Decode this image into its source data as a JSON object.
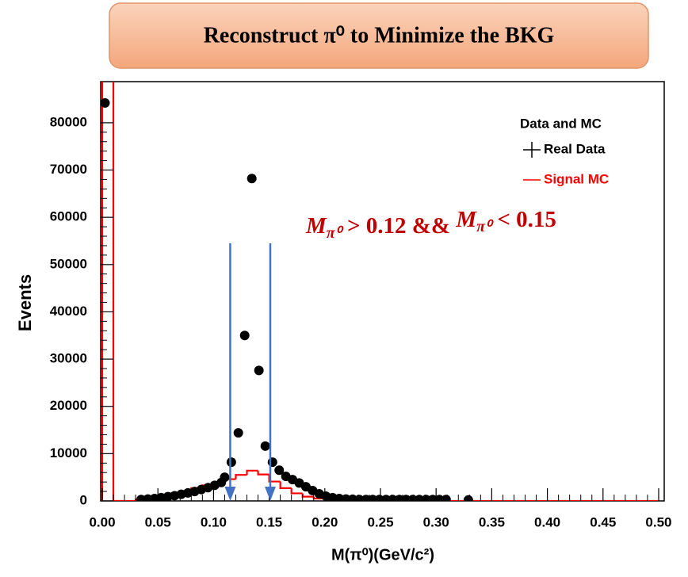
{
  "chart_data": {
    "type": "physics-hist",
    "title": "Reconstruct π⁰ to Minimize the BKG",
    "x_label": "M(π⁰)(GeV/c²)",
    "y_label": "Events",
    "xlim": [
      0,
      0.505
    ],
    "ylim": [
      0,
      88700
    ],
    "xticks": [
      {
        "value": 0,
        "label": "0.00"
      },
      0.05,
      {
        "value": 0.1,
        "label": "0.10"
      },
      0.15,
      {
        "value": 0.2,
        "label": "0.20"
      },
      0.25,
      {
        "value": 0.3,
        "label": "0.30"
      },
      0.35,
      {
        "value": 0.4,
        "label": "0.40"
      },
      0.45,
      {
        "value": 0.5,
        "label": "0.50"
      }
    ],
    "yticks": [
      0,
      10000,
      20000,
      30000,
      40000,
      50000,
      60000,
      70000,
      80000
    ],
    "legend_title": "Data and MC",
    "data": {
      "name": "Real Data",
      "color": "#000000",
      "x": [
        0.0025,
        0.035,
        0.041,
        0.047,
        0.053,
        0.059,
        0.065,
        0.071,
        0.077,
        0.083,
        0.089,
        0.095,
        0.101,
        0.107,
        0.11,
        0.116,
        0.1223,
        0.128,
        0.1344,
        0.1408,
        0.1465,
        0.153,
        0.159,
        0.165,
        0.171,
        0.177,
        0.183,
        0.189,
        0.195,
        0.201,
        0.207,
        0.213,
        0.219,
        0.225,
        0.231,
        0.237,
        0.243,
        0.249,
        0.255,
        0.261,
        0.267,
        0.273,
        0.279,
        0.285,
        0.291,
        0.297,
        0.303,
        0.309,
        0.329
      ],
      "values": [
        84200,
        300,
        400,
        500,
        700,
        900,
        1100,
        1400,
        1700,
        2000,
        2400,
        2800,
        3300,
        3900,
        5000,
        8200,
        14400,
        35000,
        68200,
        27600,
        11600,
        8200,
        6500,
        5200,
        4500,
        3800,
        3000,
        2200,
        1500,
        1000,
        700,
        500,
        400,
        350,
        300,
        300,
        300,
        300,
        300,
        300,
        300,
        300,
        300,
        300,
        300,
        300,
        300,
        300,
        200
      ]
    },
    "mc": {
      "name": "Signal MC",
      "color": "#ff0000",
      "bins": [
        0,
        0.01,
        0.02,
        0.03,
        0.04,
        0.05,
        0.06,
        0.07,
        0.08,
        0.09,
        0.1,
        0.11,
        0.12,
        0.13,
        0.14,
        0.15,
        0.16,
        0.17,
        0.18,
        0.19,
        0.2,
        0.21,
        0.22,
        0.23,
        0.24,
        0.25,
        0.26,
        0.27,
        0.28,
        0.29,
        0.3,
        0.31,
        0.32,
        0.33,
        0.34,
        0.35,
        0.36,
        0.37,
        0.38,
        0.39,
        0.4,
        0.41,
        0.42,
        0.43,
        0.44,
        0.45,
        0.46,
        0.47,
        0.48,
        0.49,
        0.5
      ],
      "counts": [
        95000,
        0,
        0,
        300,
        700,
        1100,
        1600,
        2100,
        2700,
        3300,
        3900,
        4600,
        5500,
        6400,
        5600,
        4100,
        2700,
        1600,
        900,
        500,
        300,
        200,
        150,
        100,
        100,
        50,
        0,
        0,
        0,
        0,
        0,
        0,
        0,
        0,
        0,
        0,
        0,
        0,
        0,
        0,
        0,
        0,
        0,
        0,
        0,
        0,
        0,
        0,
        0,
        0
      ]
    },
    "cuts": [
      0.115,
      0.151
    ],
    "cut_color": "#4472c4",
    "annotation": [
      "M",
      "π⁰",
      " > 0.12 && ",
      "M",
      "π⁰",
      " < 0.15"
    ],
    "annotation_color": "#c00000"
  }
}
